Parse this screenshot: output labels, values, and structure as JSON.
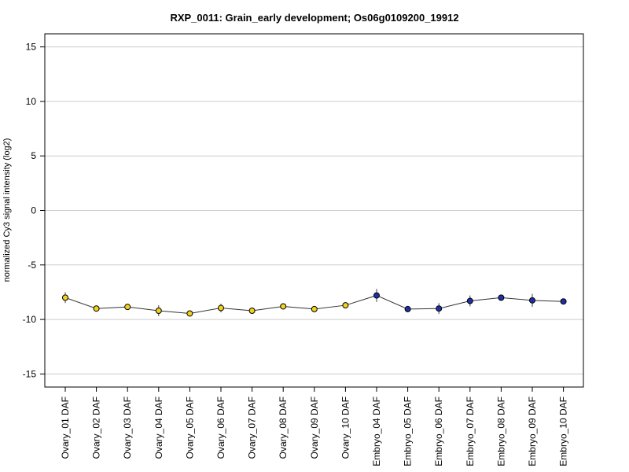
{
  "chart_data": {
    "type": "line",
    "title": "RXP_0011: Grain_early development; Os06g0109200_19912",
    "xlabel": "",
    "ylabel": "normalized Cy3 signal intensity (log2)",
    "ylim": [
      -16.2,
      16.2
    ],
    "yticks": [
      -15,
      -10,
      -5,
      0,
      5,
      10,
      15
    ],
    "grid": "horizontal",
    "colors": {
      "ovary": "#f2d21b",
      "embryo": "#1f2fa8",
      "line": "#333333",
      "grid": "#cccccc"
    },
    "categories": [
      "Ovary_01 DAF",
      "Ovary_02 DAF",
      "Ovary_03 DAF",
      "Ovary_04 DAF",
      "Ovary_05 DAF",
      "Ovary_06 DAF",
      "Ovary_07 DAF",
      "Ovary_08 DAF",
      "Ovary_09 DAF",
      "Ovary_10 DAF",
      "Embryo_04 DAF",
      "Embryo_05 DAF",
      "Embryo_06 DAF",
      "Embryo_07 DAF",
      "Embryo_08 DAF",
      "Embryo_09 DAF",
      "Embryo_10 DAF"
    ],
    "series": [
      {
        "values": [
          -8.0,
          -9.0,
          -8.85,
          -9.2,
          -9.45,
          -8.95,
          -9.2,
          -8.8,
          -9.05,
          -8.7,
          -7.8,
          -9.05,
          -9.0,
          -8.3,
          -8.0,
          -8.25,
          -8.35
        ],
        "errors": [
          0.5,
          0.2,
          0.2,
          0.5,
          0.2,
          0.4,
          0.25,
          0.2,
          0.2,
          0.25,
          0.6,
          0.2,
          0.5,
          0.5,
          0.15,
          0.6,
          0.15
        ],
        "groups": [
          "ovary",
          "ovary",
          "ovary",
          "ovary",
          "ovary",
          "ovary",
          "ovary",
          "ovary",
          "ovary",
          "ovary",
          "embryo",
          "embryo",
          "embryo",
          "embryo",
          "embryo",
          "embryo",
          "embryo"
        ]
      }
    ]
  }
}
